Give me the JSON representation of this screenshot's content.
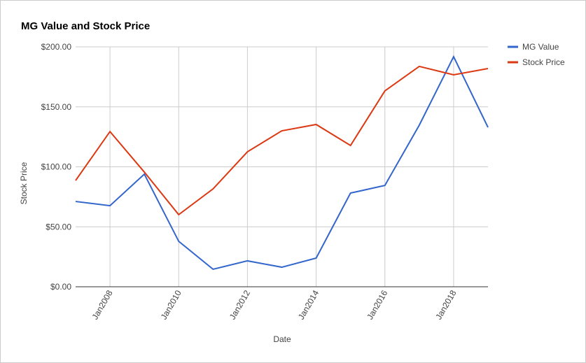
{
  "chart_data": {
    "type": "line",
    "title": "MG Value and Stock Price",
    "x_label": "Date",
    "y_label": "Stock Price",
    "x": [
      2007,
      2008,
      2009,
      2010,
      2011,
      2012,
      2013,
      2014,
      2015,
      2016,
      2017,
      2018,
      2019
    ],
    "xlim": [
      2007,
      2019
    ],
    "xticks": [
      {
        "value": 2008,
        "label": "Jan2008"
      },
      {
        "value": 2010,
        "label": "Jan2010"
      },
      {
        "value": 2012,
        "label": "Jan2012"
      },
      {
        "value": 2014,
        "label": "Jan2014"
      },
      {
        "value": 2016,
        "label": "Jan2016"
      },
      {
        "value": 2018,
        "label": "Jan2018"
      }
    ],
    "ylim": [
      0,
      200
    ],
    "yticks": [
      {
        "value": 0,
        "label": "$0.00"
      },
      {
        "value": 50,
        "label": "$50.00"
      },
      {
        "value": 100,
        "label": "$100.00"
      },
      {
        "value": 150,
        "label": "$150.00"
      },
      {
        "value": 200,
        "label": "$200.00"
      }
    ],
    "grid": true,
    "legend": "right",
    "series": [
      {
        "name": "MG Value",
        "color": "#3366cc",
        "values": [
          71.1,
          67.6,
          93.9,
          37.9,
          14.6,
          21.6,
          16.3,
          23.9,
          78.1,
          84.5,
          134.7,
          191.8,
          132.9
        ]
      },
      {
        "name": "Stock Price",
        "color": "#dc3912",
        "values": [
          88.6,
          129.4,
          95.6,
          60.1,
          81.6,
          112.5,
          130.0,
          135.3,
          117.8,
          163.3,
          183.7,
          176.7,
          181.9
        ]
      }
    ]
  }
}
